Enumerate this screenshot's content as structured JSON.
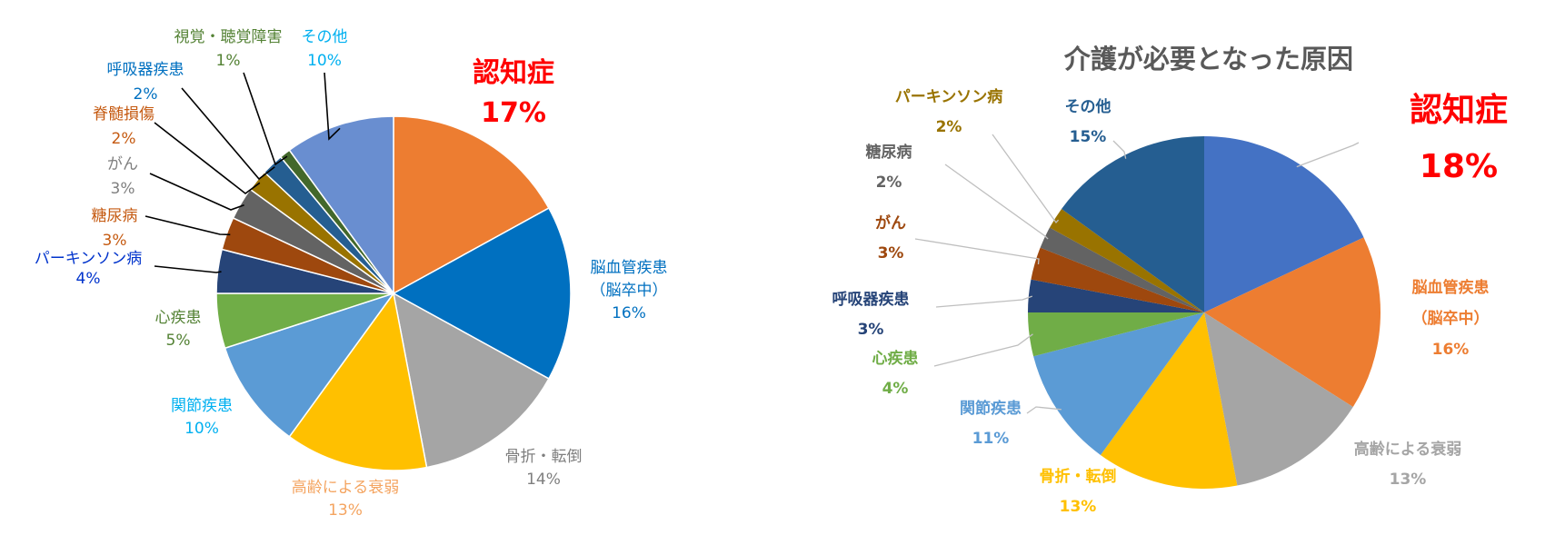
{
  "chart_data": [
    {
      "type": "pie",
      "title": "",
      "slices": [
        {
          "label": "認知症",
          "pct": "17%",
          "value": 17,
          "color": "#ED7D31",
          "label_color": "#FF0000"
        },
        {
          "label": "脳血管疾患",
          "sub": "（脳卒中）",
          "pct": "16%",
          "value": 16,
          "color": "#0070C0",
          "label_color": "#0070C0"
        },
        {
          "label": "骨折・転倒",
          "pct": "14%",
          "value": 14,
          "color": "#A5A5A5",
          "label_color": "#7F7F7F"
        },
        {
          "label": "高齢による衰弱",
          "pct": "13%",
          "value": 13,
          "color": "#FFC000",
          "label_color": "#F4A460"
        },
        {
          "label": "関節疾患",
          "pct": "10%",
          "value": 10,
          "color": "#5B9BD5",
          "label_color": "#00B0F0"
        },
        {
          "label": "心疾患",
          "pct": "5%",
          "value": 5,
          "color": "#70AD47",
          "label_color": "#548235"
        },
        {
          "label": "パーキンソン病",
          "pct": "4%",
          "value": 4,
          "color": "#264478",
          "label_color": "#0033CC"
        },
        {
          "label": "糖尿病",
          "pct": "3%",
          "value": 3,
          "color": "#9E480E",
          "label_color": "#C55A11"
        },
        {
          "label": "がん",
          "pct": "3%",
          "value": 3,
          "color": "#636363",
          "label_color": "#7F7F7F"
        },
        {
          "label": "脊髄損傷",
          "pct": "2%",
          "value": 2,
          "color": "#997300",
          "label_color": "#C55A11"
        },
        {
          "label": "呼吸器疾患",
          "pct": "2%",
          "value": 2,
          "color": "#255E91",
          "label_color": "#0070C0"
        },
        {
          "label": "視覚・聴覚障害",
          "pct": "1%",
          "value": 1,
          "color": "#43682B",
          "label_color": "#548235"
        },
        {
          "label": "その他",
          "pct": "10%",
          "value": 10,
          "color": "#698ED0",
          "label_color": "#00B0F0"
        }
      ]
    },
    {
      "type": "pie",
      "title": "介護が必要となった原因",
      "slices": [
        {
          "label": "認知症",
          "pct": "18%",
          "value": 18,
          "color": "#4472C4",
          "label_color": "#FF0000"
        },
        {
          "label": "脳血管疾患",
          "sub": "（脳卒中）",
          "pct": "16%",
          "value": 16,
          "color": "#ED7D31",
          "label_color": "#ED7D31"
        },
        {
          "label": "高齢による衰弱",
          "pct": "13%",
          "value": 13,
          "color": "#A5A5A5",
          "label_color": "#A5A5A5"
        },
        {
          "label": "骨折・転倒",
          "pct": "13%",
          "value": 13,
          "color": "#FFC000",
          "label_color": "#FFC000"
        },
        {
          "label": "関節疾患",
          "pct": "11%",
          "value": 11,
          "color": "#5B9BD5",
          "label_color": "#5B9BD5"
        },
        {
          "label": "心疾患",
          "pct": "4%",
          "value": 4,
          "color": "#70AD47",
          "label_color": "#70AD47"
        },
        {
          "label": "呼吸器疾患",
          "pct": "3%",
          "value": 3,
          "color": "#264478",
          "label_color": "#264478"
        },
        {
          "label": "がん",
          "pct": "3%",
          "value": 3,
          "color": "#9E480E",
          "label_color": "#9E480E"
        },
        {
          "label": "糖尿病",
          "pct": "2%",
          "value": 2,
          "color": "#636363",
          "label_color": "#636363"
        },
        {
          "label": "パーキンソン病",
          "pct": "2%",
          "value": 2,
          "color": "#997300",
          "label_color": "#997300"
        },
        {
          "label": "その他",
          "pct": "15%",
          "value": 15,
          "color": "#255E91",
          "label_color": "#255E91"
        }
      ]
    }
  ]
}
